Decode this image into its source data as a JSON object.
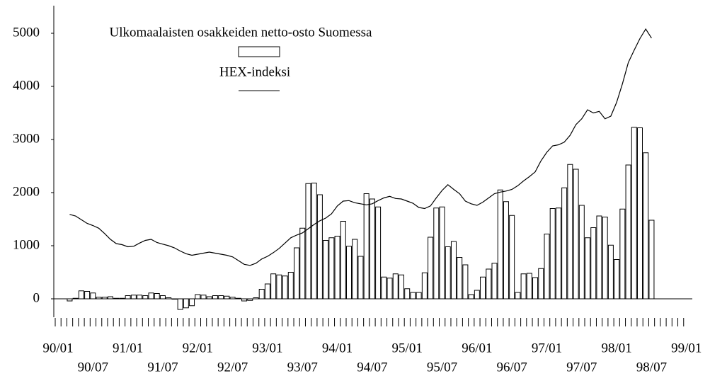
{
  "chart_data": {
    "type": "bar_line",
    "categories": [
      "90/01",
      null,
      null,
      null,
      null,
      null,
      "90/07",
      null,
      null,
      null,
      null,
      null,
      "91/01",
      null,
      null,
      null,
      null,
      null,
      "91/07",
      null,
      null,
      null,
      null,
      null,
      "92/01",
      null,
      null,
      null,
      null,
      null,
      "92/07",
      null,
      null,
      null,
      null,
      null,
      "93/01",
      null,
      null,
      null,
      null,
      null,
      "93/07",
      null,
      null,
      null,
      null,
      null,
      "94/01",
      null,
      null,
      null,
      null,
      null,
      "94/07",
      null,
      null,
      null,
      null,
      null,
      "95/01",
      null,
      null,
      null,
      null,
      null,
      "95/07",
      null,
      null,
      null,
      null,
      null,
      "96/01",
      null,
      null,
      null,
      null,
      null,
      "96/07",
      null,
      null,
      null,
      null,
      null,
      "97/01",
      null,
      null,
      null,
      null,
      null,
      "97/07",
      null,
      null,
      null,
      null,
      null,
      "98/01",
      null,
      null,
      null,
      null,
      null,
      "98/07",
      null,
      null,
      null,
      null,
      null,
      "99/01"
    ],
    "series": [
      {
        "name": "Ulkomaalaisten osakkeiden netto-osto Suomessa",
        "kind": "bar",
        "color": "#ffffff",
        "values": [
          null,
          null,
          -40,
          10,
          150,
          140,
          110,
          30,
          30,
          40,
          10,
          10,
          60,
          70,
          70,
          60,
          110,
          100,
          60,
          20,
          0,
          -200,
          -170,
          -130,
          80,
          70,
          40,
          60,
          60,
          50,
          30,
          10,
          -40,
          -30,
          20,
          180,
          280,
          470,
          450,
          430,
          500,
          960,
          1330,
          2170,
          2180,
          1960,
          1100,
          1150,
          1180,
          1460,
          990,
          1120,
          800,
          1980,
          1880,
          1730,
          410,
          390,
          470,
          450,
          190,
          120,
          120,
          490,
          1160,
          1710,
          1730,
          980,
          1080,
          780,
          640,
          80,
          160,
          410,
          560,
          670,
          2050,
          1830,
          1570,
          120,
          470,
          480,
          400,
          570,
          1220,
          1700,
          1710,
          2090,
          2530,
          2440,
          1760,
          1150,
          1340,
          1560,
          1540,
          1010,
          740,
          1690,
          2520,
          3230,
          3220,
          2750,
          1480,
          null,
          null,
          null,
          null,
          null,
          null
        ]
      },
      {
        "name": "HEX-indeksi",
        "kind": "line",
        "color": "#000000",
        "values": [
          null,
          null,
          1590,
          1560,
          1490,
          1420,
          1380,
          1330,
          1230,
          1120,
          1040,
          1020,
          980,
          990,
          1050,
          1100,
          1120,
          1060,
          1030,
          1000,
          960,
          900,
          850,
          820,
          840,
          860,
          880,
          860,
          840,
          820,
          790,
          720,
          650,
          630,
          670,
          750,
          800,
          870,
          950,
          1050,
          1150,
          1200,
          1240,
          1320,
          1400,
          1470,
          1520,
          1600,
          1750,
          1840,
          1850,
          1810,
          1790,
          1770,
          1790,
          1850,
          1900,
          1930,
          1890,
          1880,
          1840,
          1800,
          1720,
          1700,
          1750,
          1900,
          2040,
          2150,
          2060,
          1980,
          1840,
          1790,
          1760,
          1820,
          1900,
          1980,
          2010,
          2030,
          2060,
          2130,
          2220,
          2300,
          2390,
          2600,
          2760,
          2880,
          2900,
          2950,
          3080,
          3280,
          3390,
          3560,
          3500,
          3530,
          3390,
          3440,
          3700,
          4050,
          4450,
          4680,
          4900,
          5080,
          4910,
          null,
          null,
          null,
          null,
          null,
          null
        ]
      }
    ],
    "ylim": [
      -300,
      5500
    ],
    "yticks": [
      0,
      1000,
      2000,
      3000,
      4000,
      5000
    ]
  }
}
